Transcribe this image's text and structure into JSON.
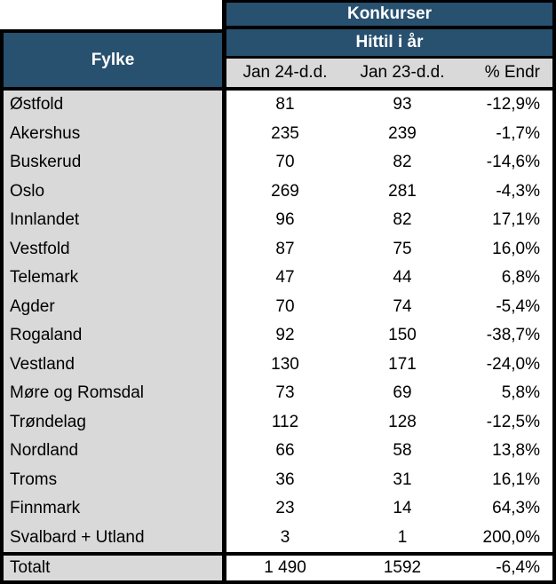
{
  "table": {
    "title": "Konkurser",
    "subtitle": "Hittil i år",
    "fylke_header": "Fylke",
    "columns": [
      "Jan 24-d.d.",
      "Jan 23-d.d.",
      "% Endr"
    ],
    "rows": [
      {
        "fylke": "Østfold",
        "jan24": "81",
        "jan23": "93",
        "endr": "-12,9%"
      },
      {
        "fylke": "Akershus",
        "jan24": "235",
        "jan23": "239",
        "endr": "-1,7%"
      },
      {
        "fylke": "Buskerud",
        "jan24": "70",
        "jan23": "82",
        "endr": "-14,6%"
      },
      {
        "fylke": "Oslo",
        "jan24": "269",
        "jan23": "281",
        "endr": "-4,3%"
      },
      {
        "fylke": "Innlandet",
        "jan24": "96",
        "jan23": "82",
        "endr": "17,1%"
      },
      {
        "fylke": "Vestfold",
        "jan24": "87",
        "jan23": "75",
        "endr": "16,0%"
      },
      {
        "fylke": "Telemark",
        "jan24": "47",
        "jan23": "44",
        "endr": "6,8%"
      },
      {
        "fylke": "Agder",
        "jan24": "70",
        "jan23": "74",
        "endr": "-5,4%"
      },
      {
        "fylke": "Rogaland",
        "jan24": "92",
        "jan23": "150",
        "endr": "-38,7%"
      },
      {
        "fylke": "Vestland",
        "jan24": "130",
        "jan23": "171",
        "endr": "-24,0%"
      },
      {
        "fylke": "Møre og Romsdal",
        "jan24": "73",
        "jan23": "69",
        "endr": "5,8%"
      },
      {
        "fylke": "Trøndelag",
        "jan24": "112",
        "jan23": "128",
        "endr": "-12,5%"
      },
      {
        "fylke": "Nordland",
        "jan24": "66",
        "jan23": "58",
        "endr": "13,8%"
      },
      {
        "fylke": "Troms",
        "jan24": "36",
        "jan23": "31",
        "endr": "16,1%"
      },
      {
        "fylke": "Finnmark",
        "jan24": "23",
        "jan23": "14",
        "endr": "64,3%"
      },
      {
        "fylke": "Svalbard + Utland",
        "jan24": "3",
        "jan23": "1",
        "endr": "200,0%"
      }
    ],
    "total": {
      "fylke": "Totalt",
      "jan24": "1 490",
      "jan23": "1592",
      "endr": "-6,4%"
    },
    "colors": {
      "header_blue": "#28506F",
      "row_gray": "#D9D9D9",
      "border_black": "#000000"
    }
  }
}
